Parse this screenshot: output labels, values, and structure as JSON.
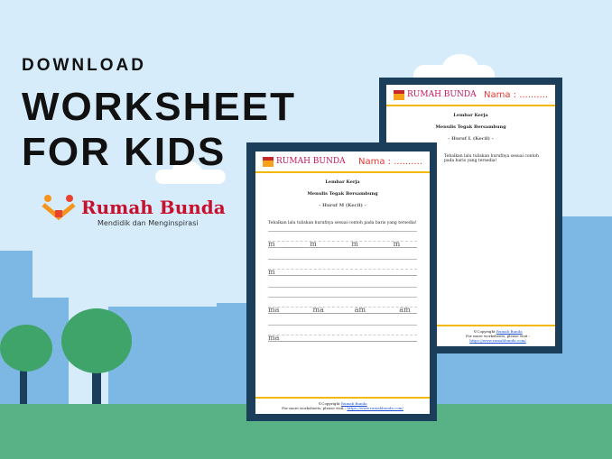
{
  "headline": {
    "line1": "DOWNLOAD",
    "line2": "WORKSHEET",
    "line3": "FOR KIDS"
  },
  "logo": {
    "name": "Rumah Bunda",
    "tagline": "Mendidik dan Menginspirasi"
  },
  "colors": {
    "sky": "#d6ecfa",
    "buildings": "#7cb8e3",
    "ground": "#59b285",
    "frame": "#1b3f5b",
    "accent": "#f5b800",
    "brand": "#c8102e"
  },
  "sheet_back": {
    "brand": "RUMAH BUNDA",
    "name_label": "Nama : ..........",
    "title": "Lembar Kerja",
    "subtitle": "Menulis Tegak Bersambung",
    "letter": "- Huruf L (Kecil) -",
    "instruction": "Tebalkan lalu tuliskan hurufnya sesuai contoh pada baris yang tersedia!",
    "copyright": "©Copyright",
    "copyright_link": "Rumah Bunda",
    "more": "For more worksheets, please visit :",
    "url": "https://www.rumahbunda.com/"
  },
  "sheet_front": {
    "brand": "RUMAH BUNDA",
    "name_label": "Nama : ..........",
    "title": "Lembar Kerja",
    "subtitle": "Menulis Tegak Bersambung",
    "letter": "- Huruf M (Kecil) -",
    "instruction": "Tebalkan lalu tuliskan hurufnya sesuai contoh pada baris yang tersedia!",
    "rows": [
      [
        "m",
        "m",
        "m",
        "m"
      ],
      [
        "m"
      ],
      [
        "ma",
        "ma",
        "am",
        "am"
      ],
      [
        "ma"
      ]
    ],
    "copyright": "©Copyright",
    "copyright_link": "Rumah Bunda",
    "more": "For more worksheets, please visit :",
    "url": "https://www.rumahbunda.com/"
  }
}
